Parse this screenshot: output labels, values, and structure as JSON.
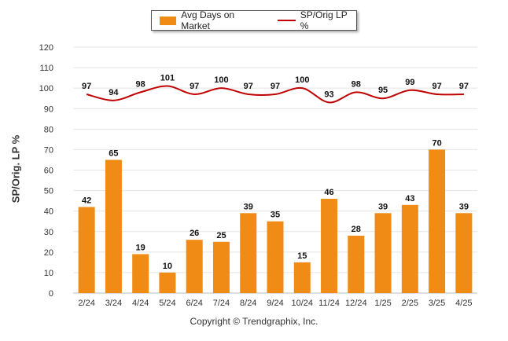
{
  "chart_data": {
    "type": "bar",
    "ylabel": "SP/Orig. LP %",
    "ylim": [
      0,
      120
    ],
    "yticks": [
      0,
      10,
      20,
      30,
      40,
      50,
      60,
      70,
      80,
      90,
      100,
      110,
      120
    ],
    "grid": true,
    "legend_position": "top-center",
    "categories": [
      "2/24",
      "3/24",
      "4/24",
      "5/24",
      "6/24",
      "7/24",
      "8/24",
      "9/24",
      "10/24",
      "11/24",
      "12/24",
      "1/25",
      "2/25",
      "3/25",
      "4/25"
    ],
    "series": [
      {
        "name": "Avg Days on Market",
        "type": "bar",
        "color": "#f08c15",
        "values": [
          42,
          65,
          19,
          10,
          26,
          25,
          39,
          35,
          15,
          46,
          28,
          39,
          43,
          70,
          39
        ]
      },
      {
        "name": "SP/Orig LP %",
        "type": "line",
        "color": "#c00000",
        "values": [
          97,
          94,
          98,
          101,
          97,
          100,
          97,
          97,
          100,
          93,
          98,
          95,
          99,
          97,
          97
        ]
      }
    ]
  },
  "footer": {
    "copyright": "Copyright © Trendgraphix, Inc."
  }
}
